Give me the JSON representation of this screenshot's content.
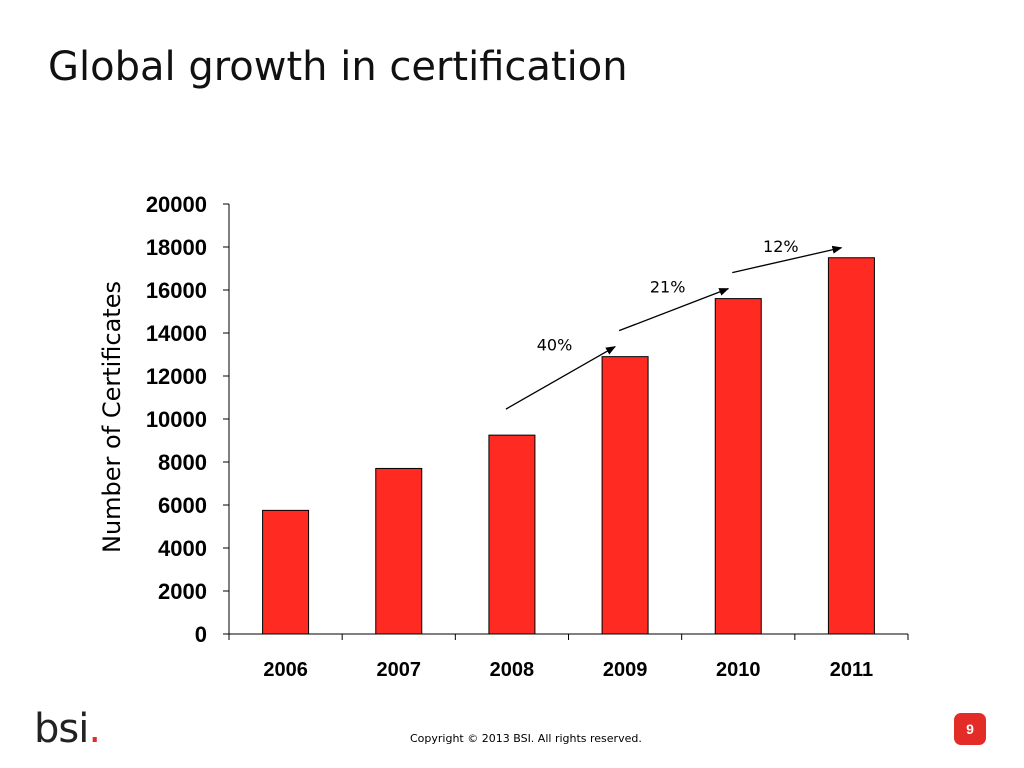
{
  "slide": {
    "title": "Global growth in certification",
    "copyright": "Copyright © 2013 BSI. All rights reserved.",
    "page_number": "9",
    "logo_text": "bsi",
    "logo_dot": "."
  },
  "colors": {
    "bar": "#ff2b22",
    "bar_stroke": "#000000",
    "accent": "#e32b27"
  },
  "chart_data": {
    "type": "bar",
    "title": "",
    "xlabel": "",
    "ylabel": "Number of Certificates",
    "categories": [
      "2006",
      "2007",
      "2008",
      "2009",
      "2010",
      "2011"
    ],
    "values": [
      5750,
      7700,
      9250,
      12900,
      15600,
      17500
    ],
    "ylim": [
      0,
      20000
    ],
    "yticks": [
      0,
      2000,
      4000,
      6000,
      8000,
      10000,
      12000,
      14000,
      16000,
      18000,
      20000
    ],
    "grid": false,
    "legend": "none",
    "annotations": [
      {
        "label": "40%",
        "from": "2008",
        "to": "2009"
      },
      {
        "label": "21%",
        "from": "2009",
        "to": "2010"
      },
      {
        "label": "12%",
        "from": "2010",
        "to": "2011"
      }
    ]
  }
}
